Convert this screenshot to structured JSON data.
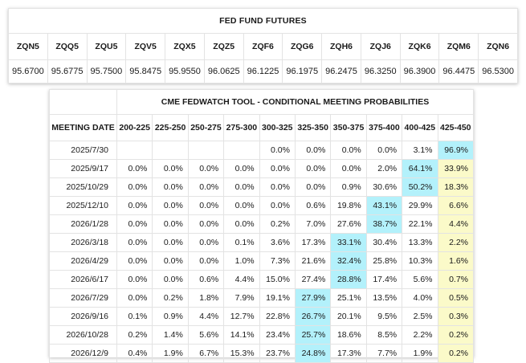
{
  "futures": {
    "title": "FED FUND FUTURES",
    "contracts": [
      "ZQN5",
      "ZQQ5",
      "ZQU5",
      "ZQV5",
      "ZQX5",
      "ZQZ5",
      "ZQF6",
      "ZQG6",
      "ZQH6",
      "ZQJ6",
      "ZQK6",
      "ZQM6",
      "ZQN6"
    ],
    "prices": [
      "95.6700",
      "95.6775",
      "95.7500",
      "95.8475",
      "95.9550",
      "96.0625",
      "96.1225",
      "96.1975",
      "96.2475",
      "96.3250",
      "96.3900",
      "96.4475",
      "96.5300"
    ]
  },
  "probabilities": {
    "title": "CME FEDWATCH TOOL - CONDITIONAL MEETING PROBABILITIES",
    "date_header": "MEETING DATE",
    "ranges": [
      "200-225",
      "225-250",
      "250-275",
      "275-300",
      "300-325",
      "325-350",
      "350-375",
      "375-400",
      "400-425",
      "425-450"
    ],
    "highlight_colors": {
      "max": "#b3f1fb",
      "current": "#fbfac9"
    },
    "rows": [
      {
        "date": "2025/7/30",
        "values": [
          "",
          "",
          "",
          "",
          "0.0%",
          "0.0%",
          "0.0%",
          "0.0%",
          "3.1%",
          "96.9%"
        ]
      },
      {
        "date": "2025/9/17",
        "values": [
          "0.0%",
          "0.0%",
          "0.0%",
          "0.0%",
          "0.0%",
          "0.0%",
          "0.0%",
          "2.0%",
          "64.1%",
          "33.9%"
        ]
      },
      {
        "date": "2025/10/29",
        "values": [
          "0.0%",
          "0.0%",
          "0.0%",
          "0.0%",
          "0.0%",
          "0.0%",
          "0.9%",
          "30.6%",
          "50.2%",
          "18.3%"
        ]
      },
      {
        "date": "2025/12/10",
        "values": [
          "0.0%",
          "0.0%",
          "0.0%",
          "0.0%",
          "0.0%",
          "0.6%",
          "19.8%",
          "43.1%",
          "29.9%",
          "6.6%"
        ]
      },
      {
        "date": "2026/1/28",
        "values": [
          "0.0%",
          "0.0%",
          "0.0%",
          "0.0%",
          "0.2%",
          "7.0%",
          "27.6%",
          "38.7%",
          "22.1%",
          "4.4%"
        ]
      },
      {
        "date": "2026/3/18",
        "values": [
          "0.0%",
          "0.0%",
          "0.0%",
          "0.1%",
          "3.6%",
          "17.3%",
          "33.1%",
          "30.4%",
          "13.3%",
          "2.2%"
        ]
      },
      {
        "date": "2026/4/29",
        "values": [
          "0.0%",
          "0.0%",
          "0.0%",
          "1.0%",
          "7.3%",
          "21.6%",
          "32.4%",
          "25.8%",
          "10.3%",
          "1.6%"
        ]
      },
      {
        "date": "2026/6/17",
        "values": [
          "0.0%",
          "0.0%",
          "0.6%",
          "4.4%",
          "15.0%",
          "27.4%",
          "28.8%",
          "17.4%",
          "5.6%",
          "0.7%"
        ]
      },
      {
        "date": "2026/7/29",
        "values": [
          "0.0%",
          "0.2%",
          "1.8%",
          "7.9%",
          "19.1%",
          "27.9%",
          "25.1%",
          "13.5%",
          "4.0%",
          "0.5%"
        ]
      },
      {
        "date": "2026/9/16",
        "values": [
          "0.1%",
          "0.9%",
          "4.4%",
          "12.7%",
          "22.8%",
          "26.7%",
          "20.1%",
          "9.5%",
          "2.5%",
          "0.3%"
        ]
      },
      {
        "date": "2026/10/28",
        "values": [
          "0.2%",
          "1.4%",
          "5.6%",
          "14.1%",
          "23.4%",
          "25.7%",
          "18.6%",
          "8.5%",
          "2.2%",
          "0.2%"
        ]
      },
      {
        "date": "2026/12/9",
        "values": [
          "0.4%",
          "1.9%",
          "6.7%",
          "15.3%",
          "23.7%",
          "24.8%",
          "17.3%",
          "7.7%",
          "1.9%",
          "0.2%"
        ]
      }
    ]
  }
}
